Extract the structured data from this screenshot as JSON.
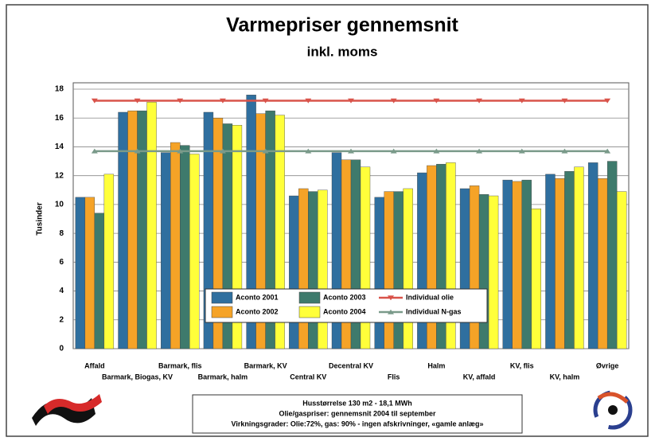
{
  "chart_data": {
    "type": "bar",
    "title": "Varmepriser gennemsnit",
    "subtitle": "inkl. moms",
    "y_label": "Tusinder",
    "categories": [
      "Affald",
      "Barmark, Biogas, KV",
      "Barmark, flis",
      "Barmark, halm",
      "Barmark, KV",
      "Central KV",
      "Decentral KV",
      "Flis",
      "Halm",
      "KV, affald",
      "KV, flis",
      "KV, halm",
      "Øvrige"
    ],
    "series": [
      {
        "name": "Aconto 2001",
        "color": "#2f6f9f",
        "values": [
          10.5,
          16.4,
          13.6,
          16.4,
          17.6,
          10.6,
          13.6,
          10.5,
          12.2,
          11.1,
          11.7,
          12.1,
          12.9
        ]
      },
      {
        "name": "Aconto 2002",
        "color": "#f5a327",
        "values": [
          10.5,
          16.5,
          14.3,
          16.0,
          16.3,
          11.1,
          13.1,
          10.9,
          12.7,
          11.3,
          11.6,
          11.8,
          11.8
        ]
      },
      {
        "name": "Aconto 2003",
        "color": "#3e7a6c",
        "values": [
          9.4,
          16.5,
          14.1,
          15.6,
          16.5,
          10.9,
          13.1,
          10.9,
          12.8,
          10.7,
          11.7,
          12.3,
          13.0
        ]
      },
      {
        "name": "Aconto 2004",
        "color": "#ffff3a",
        "values": [
          12.1,
          17.1,
          13.5,
          15.5,
          16.2,
          11.0,
          12.6,
          11.1,
          12.9,
          10.6,
          9.7,
          12.6,
          10.9
        ]
      }
    ],
    "lines": [
      {
        "name": "Individual olie",
        "color": "#d9534a",
        "marker": "down",
        "values": [
          17.2,
          17.2,
          17.2,
          17.2,
          17.2,
          17.2,
          17.2,
          17.2,
          17.2,
          17.2,
          17.2,
          17.2,
          17.2
        ]
      },
      {
        "name": "Individual N-gas",
        "color": "#7a9a8a",
        "marker": "up",
        "values": [
          13.7,
          13.7,
          13.7,
          13.7,
          13.7,
          13.7,
          13.7,
          13.7,
          13.7,
          13.7,
          13.7,
          13.7,
          13.7
        ]
      }
    ],
    "ylim": [
      0,
      18
    ],
    "yticks": [
      0,
      2,
      4,
      6,
      8,
      10,
      12,
      14,
      16,
      18
    ],
    "grid": true,
    "notes": [
      "Husstørrelse 130 m2 - 18,1 MWh",
      "Olie/gaspriser: gennemsnit 2004 til september",
      "Virkningsgrader: Olie:72%, gas: 90% - ingen afskrivninger, «gamle anlæg»"
    ]
  }
}
